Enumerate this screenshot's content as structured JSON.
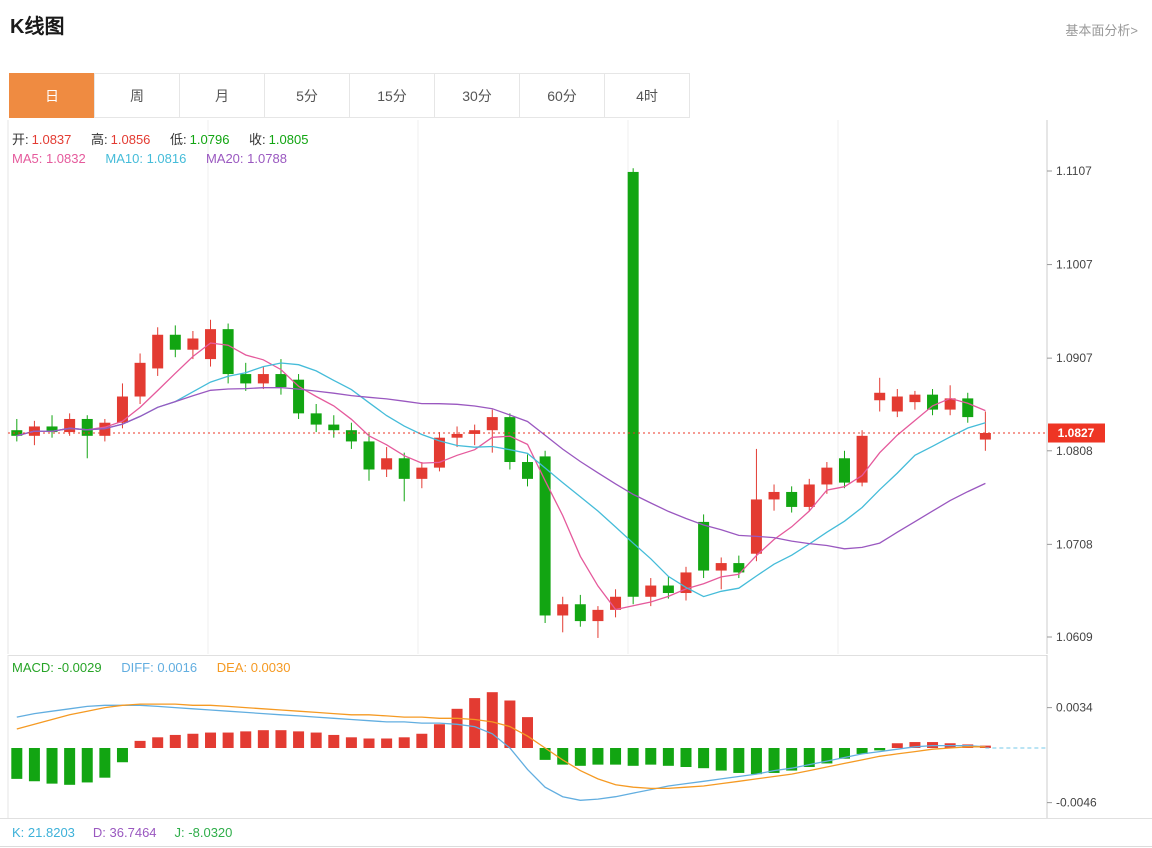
{
  "header": {
    "title": "K线图",
    "link": "基本面分析>"
  },
  "tabs": [
    {
      "label": "日",
      "active": true
    },
    {
      "label": "周",
      "active": false
    },
    {
      "label": "月",
      "active": false
    },
    {
      "label": "5分",
      "active": false
    },
    {
      "label": "15分",
      "active": false
    },
    {
      "label": "30分",
      "active": false
    },
    {
      "label": "60分",
      "active": false
    },
    {
      "label": "4时",
      "active": false
    }
  ],
  "legend": {
    "ohlc": [
      {
        "label": "开:",
        "value": "1.0837",
        "color": "#e33b32"
      },
      {
        "label": "高:",
        "value": "1.0856",
        "color": "#e33b32"
      },
      {
        "label": "低:",
        "value": "1.0796",
        "color": "#12a512"
      },
      {
        "label": "收:",
        "value": "1.0805",
        "color": "#12a512"
      }
    ],
    "ma": [
      {
        "label": "MA5:",
        "value": "1.0832",
        "color": "#e55a9c"
      },
      {
        "label": "MA10:",
        "value": "1.0816",
        "color": "#45bcd9"
      },
      {
        "label": "MA20:",
        "value": "1.0788",
        "color": "#9a58c0"
      }
    ],
    "macd": [
      {
        "label": "MACD:",
        "value": "-0.0029",
        "color": "#27a427"
      },
      {
        "label": "DIFF:",
        "value": "0.0016",
        "color": "#62aee0"
      },
      {
        "label": "DEA:",
        "value": "0.0030",
        "color": "#f59a23"
      }
    ],
    "kdj": [
      {
        "label": "K:",
        "value": "21.8203",
        "color": "#3db1d9"
      },
      {
        "label": "D:",
        "value": "36.7464",
        "color": "#9a58c0"
      },
      {
        "label": "J:",
        "value": "-8.0320",
        "color": "#2fae4a"
      }
    ]
  },
  "chart_data": {
    "type": "candlestick",
    "panels": [
      "price",
      "macd"
    ],
    "price_axis_ticks": [
      "1.1107",
      "1.1007",
      "1.0907",
      "1.0808",
      "1.0708",
      "1.0609"
    ],
    "price_axis_values": [
      1.1107,
      1.1007,
      1.0907,
      1.0808,
      1.0708,
      1.0609
    ],
    "current_price": 1.0827,
    "current_price_label": "1.0827",
    "ma_periods": [
      5,
      10,
      20
    ],
    "candles": [
      [
        1.083,
        1.0842,
        1.0818,
        1.0824
      ],
      [
        1.0824,
        1.084,
        1.0814,
        1.0834
      ],
      [
        1.0834,
        1.0846,
        1.0822,
        1.0828
      ],
      [
        1.0828,
        1.0848,
        1.0824,
        1.0842
      ],
      [
        1.0842,
        1.0846,
        1.08,
        1.0824
      ],
      [
        1.0824,
        1.0842,
        1.0818,
        1.0838
      ],
      [
        1.0838,
        1.088,
        1.0832,
        1.0866
      ],
      [
        1.0866,
        1.0912,
        1.0858,
        1.0902
      ],
      [
        1.0896,
        1.094,
        1.0888,
        1.0932
      ],
      [
        1.0932,
        1.0942,
        1.0908,
        1.0916
      ],
      [
        1.0916,
        1.0936,
        1.0906,
        1.0928
      ],
      [
        1.0906,
        1.0948,
        1.0898,
        1.0938
      ],
      [
        1.0938,
        1.0944,
        1.088,
        1.089
      ],
      [
        1.089,
        1.0902,
        1.0872,
        1.088
      ],
      [
        1.088,
        1.0898,
        1.0874,
        1.089
      ],
      [
        1.089,
        1.0906,
        1.0868,
        1.0876
      ],
      [
        1.0884,
        1.089,
        1.0842,
        1.0848
      ],
      [
        1.0848,
        1.0858,
        1.0828,
        1.0836
      ],
      [
        1.0836,
        1.0846,
        1.0822,
        1.083
      ],
      [
        1.083,
        1.0838,
        1.081,
        1.0818
      ],
      [
        1.0818,
        1.0826,
        1.0776,
        1.0788
      ],
      [
        1.0788,
        1.0812,
        1.078,
        1.08
      ],
      [
        1.08,
        1.0806,
        1.0754,
        1.0778
      ],
      [
        1.0778,
        1.0796,
        1.0768,
        1.079
      ],
      [
        1.079,
        1.0828,
        1.0786,
        1.0822
      ],
      [
        1.0822,
        1.0834,
        1.0812,
        1.0826
      ],
      [
        1.0826,
        1.0836,
        1.0814,
        1.083
      ],
      [
        1.083,
        1.0852,
        1.0806,
        1.0844
      ],
      [
        1.0844,
        1.0848,
        1.0788,
        1.0796
      ],
      [
        1.0796,
        1.0804,
        1.077,
        1.0778
      ],
      [
        1.0802,
        1.0808,
        1.0624,
        1.0632
      ],
      [
        1.0632,
        1.0652,
        1.0614,
        1.0644
      ],
      [
        1.0644,
        1.0654,
        1.062,
        1.0626
      ],
      [
        1.0626,
        1.0642,
        1.0608,
        1.0638
      ],
      [
        1.0638,
        1.066,
        1.063,
        1.0652
      ],
      [
        1.1106,
        1.111,
        1.0644,
        1.0652
      ],
      [
        1.0652,
        1.0672,
        1.0642,
        1.0664
      ],
      [
        1.0664,
        1.0674,
        1.065,
        1.0656
      ],
      [
        1.0656,
        1.0684,
        1.0648,
        1.0678
      ],
      [
        1.0732,
        1.074,
        1.0672,
        1.068
      ],
      [
        1.068,
        1.0694,
        1.066,
        1.0688
      ],
      [
        1.0688,
        1.0696,
        1.0672,
        1.0678
      ],
      [
        1.0698,
        1.081,
        1.069,
        1.0756
      ],
      [
        1.0756,
        1.0772,
        1.0744,
        1.0764
      ],
      [
        1.0764,
        1.077,
        1.0742,
        1.0748
      ],
      [
        1.0748,
        1.0778,
        1.0744,
        1.0772
      ],
      [
        1.0772,
        1.0796,
        1.0762,
        1.079
      ],
      [
        1.08,
        1.0808,
        1.0768,
        1.0774
      ],
      [
        1.0774,
        1.083,
        1.077,
        1.0824
      ],
      [
        1.0862,
        1.0886,
        1.085,
        1.087
      ],
      [
        1.085,
        1.0874,
        1.0844,
        1.0866
      ],
      [
        1.086,
        1.0872,
        1.0852,
        1.0868
      ],
      [
        1.0868,
        1.0874,
        1.0846,
        1.0852
      ],
      [
        1.0852,
        1.0878,
        1.0846,
        1.0864
      ],
      [
        1.0864,
        1.087,
        1.0838,
        1.0844
      ],
      [
        1.082,
        1.085,
        1.0808,
        1.0827
      ]
    ],
    "macd": {
      "axis_ticks": [
        "0.0034",
        "-0.0046"
      ],
      "axis_values": [
        0.0034,
        -0.0046
      ],
      "hist": [
        -0.0026,
        -0.0028,
        -0.003,
        -0.0031,
        -0.0029,
        -0.0025,
        -0.0012,
        0.0006,
        0.0009,
        0.0011,
        0.0012,
        0.0013,
        0.0013,
        0.0014,
        0.0015,
        0.0015,
        0.0014,
        0.0013,
        0.0011,
        0.0009,
        0.0008,
        0.0008,
        0.0009,
        0.0012,
        0.002,
        0.0033,
        0.0042,
        0.0047,
        0.004,
        0.0026,
        -0.001,
        -0.0014,
        -0.0015,
        -0.0014,
        -0.0014,
        -0.0015,
        -0.0014,
        -0.0015,
        -0.0016,
        -0.0017,
        -0.0019,
        -0.0021,
        -0.0022,
        -0.0021,
        -0.0019,
        -0.0016,
        -0.0013,
        -0.0009,
        -0.0005,
        -0.0002,
        0.0004,
        0.0005,
        0.0005,
        0.0004,
        0.0003,
        0.0002
      ],
      "diff": [
        0.0026,
        0.0029,
        0.0031,
        0.0033,
        0.0035,
        0.0036,
        0.0036,
        0.0036,
        0.0035,
        0.0034,
        0.0033,
        0.0032,
        0.0031,
        0.003,
        0.0029,
        0.0028,
        0.0027,
        0.0026,
        0.0025,
        0.0024,
        0.0023,
        0.0022,
        0.0022,
        0.0021,
        0.0021,
        0.002,
        0.0018,
        0.0012,
        0.0,
        -0.0018,
        -0.0033,
        -0.0041,
        -0.0044,
        -0.0043,
        -0.0041,
        -0.0038,
        -0.0035,
        -0.0032,
        -0.003,
        -0.0028,
        -0.0026,
        -0.0024,
        -0.0022,
        -0.0019,
        -0.0017,
        -0.0014,
        -0.0011,
        -0.0008,
        -0.0005,
        -0.0003,
        -0.0001,
        0.0001,
        0.0002,
        0.0002,
        0.0002,
        0.0001
      ],
      "dea": [
        0.0016,
        0.002,
        0.0024,
        0.0028,
        0.0031,
        0.0034,
        0.0036,
        0.0037,
        0.0037,
        0.0037,
        0.0036,
        0.0036,
        0.0035,
        0.0034,
        0.0033,
        0.0032,
        0.0031,
        0.003,
        0.0029,
        0.0028,
        0.0028,
        0.0027,
        0.0026,
        0.0026,
        0.0025,
        0.0025,
        0.0024,
        0.0022,
        0.0018,
        0.001,
        0.0,
        -0.001,
        -0.0019,
        -0.0026,
        -0.0031,
        -0.0033,
        -0.0034,
        -0.0034,
        -0.0033,
        -0.0032,
        -0.003,
        -0.0028,
        -0.0026,
        -0.0024,
        -0.0022,
        -0.0019,
        -0.0016,
        -0.0013,
        -0.001,
        -0.0007,
        -0.0005,
        -0.0003,
        -0.0001,
        0.0,
        0.0001,
        0.0001
      ]
    },
    "kdj": {
      "k": 21.8203,
      "d": 36.7464,
      "j": -8.032
    },
    "colors": {
      "up": "#e33b32",
      "down": "#12a512",
      "ma5": "#e55a9c",
      "ma10": "#45bcd9",
      "ma20": "#9a58c0",
      "diff": "#62aee0",
      "dea": "#f59a23",
      "tag": "#ee3524"
    }
  }
}
